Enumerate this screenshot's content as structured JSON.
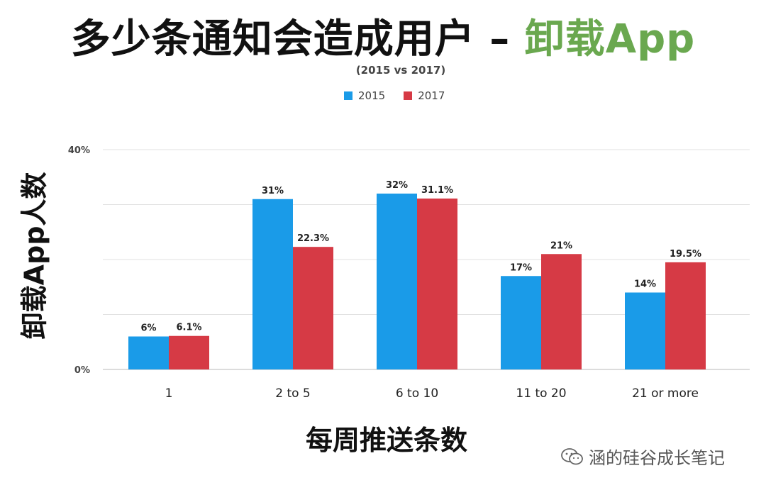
{
  "chart_data": {
    "type": "bar",
    "title_main": "多少条通知会造成用户 – ",
    "title_accent": "卸载App",
    "subtitle": "(2015 vs 2017)",
    "ylabel": "卸载App人数",
    "xlabel": "每周推送条数",
    "categories": [
      "1",
      "2 to 5",
      "6 to 10",
      "11 to 20",
      "21 or more"
    ],
    "series": [
      {
        "name": "2015",
        "color": "#1a9be8",
        "values": [
          6,
          31,
          32,
          17,
          14
        ],
        "labels": [
          "6%",
          "31%",
          "32%",
          "17%",
          "14%"
        ]
      },
      {
        "name": "2017",
        "color": "#d63a45",
        "values": [
          6.1,
          22.3,
          31.1,
          21,
          19.5
        ],
        "labels": [
          "6.1%",
          "22.3%",
          "31.1%",
          "21%",
          "19.5%"
        ]
      }
    ],
    "ylim": [
      0,
      40
    ],
    "yticks": [
      {
        "value": 0,
        "label": "0%"
      },
      {
        "value": 40,
        "label": "40%"
      }
    ],
    "gridlines": [
      10,
      20,
      30,
      40
    ],
    "legend_position": "top-center"
  },
  "watermark": "涵的硅谷成长笔记"
}
